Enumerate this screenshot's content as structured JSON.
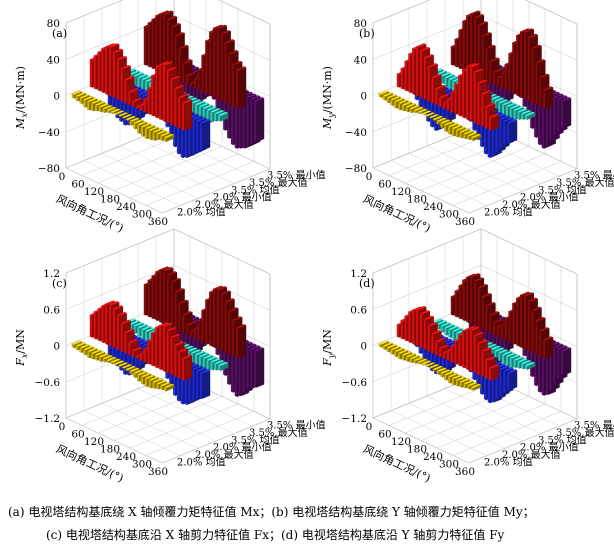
{
  "chart_data": [
    {
      "type": "bar",
      "panel_label": "(a)",
      "ylabel_var": "M",
      "ylabel_sub": "x",
      "ylabel_unit": "/(MN·m)",
      "ylim": [
        -80,
        80
      ],
      "yticks": [
        "80",
        "40",
        "0",
        "−40",
        "−80"
      ],
      "xlabel": "风向角工况/(°)",
      "xticks": [
        "0",
        "60",
        "120",
        "180",
        "240",
        "300",
        "360"
      ],
      "zticks": [
        "3.5% 最小值",
        "3.5% 最大值",
        "3.5% 均值",
        "2.0% 最小值",
        "2.0% 最大值",
        "2.0% 均值"
      ],
      "series": [
        {
          "label": "3.5% 最小值",
          "color": "#5a0f66",
          "values": [
            -45,
            -48,
            -50,
            -52,
            -55,
            -52,
            -48,
            -44,
            -35,
            -30,
            -25,
            -20,
            -18,
            -20,
            -28,
            -38,
            -48,
            -55,
            -60,
            -62,
            -60,
            -58,
            -54,
            -50,
            -45
          ]
        },
        {
          "label": "3.5% 最大值",
          "color": "#8b0a0a",
          "values": [
            42,
            48,
            54,
            60,
            64,
            66,
            62,
            56,
            48,
            36,
            22,
            10,
            4,
            10,
            22,
            40,
            58,
            70,
            76,
            78,
            74,
            66,
            56,
            46,
            42
          ]
        },
        {
          "label": "3.5% 均值",
          "color": "#2fd0c0",
          "values": [
            -6,
            -8,
            -10,
            -12,
            -14,
            -12,
            -10,
            -8,
            -6,
            -4,
            -2,
            0,
            0,
            0,
            -2,
            -6,
            -10,
            -14,
            -16,
            -18,
            -16,
            -14,
            -10,
            -8,
            -6
          ]
        },
        {
          "label": "2.0% 最小值",
          "color": "#1f2bd8",
          "values": [
            -30,
            -34,
            -38,
            -40,
            -42,
            -40,
            -36,
            -30,
            -24,
            -18,
            -12,
            -8,
            -6,
            -8,
            -14,
            -22,
            -32,
            -40,
            -46,
            -48,
            -46,
            -42,
            -38,
            -34,
            -30
          ]
        },
        {
          "label": "2.0% 最大值",
          "color": "#e01010",
          "values": [
            30,
            36,
            42,
            48,
            52,
            54,
            50,
            44,
            36,
            26,
            14,
            6,
            2,
            6,
            14,
            28,
            44,
            56,
            60,
            62,
            58,
            50,
            42,
            34,
            30
          ]
        },
        {
          "label": "2.0% 均值",
          "color": "#d6b800",
          "values": [
            -4,
            -5,
            -6,
            -8,
            -9,
            -8,
            -6,
            -5,
            -4,
            -2,
            -1,
            0,
            0,
            0,
            -1,
            -4,
            -6,
            -9,
            -10,
            -11,
            -10,
            -9,
            -6,
            -5,
            -4
          ]
        }
      ]
    },
    {
      "type": "bar",
      "panel_label": "(b)",
      "ylabel_var": "M",
      "ylabel_sub": "y",
      "ylabel_unit": "/(MN·m)",
      "ylim": [
        -80,
        80
      ],
      "yticks": [
        "80",
        "40",
        "0",
        "−40",
        "−80"
      ],
      "xlabel": "风向角工况/(°)",
      "xticks": [
        "0",
        "60",
        "120",
        "180",
        "240",
        "300",
        "360"
      ],
      "zticks": [
        "3.5% 最小值",
        "3.5% 最大值",
        "3.5% 均值",
        "2.0% 最小值",
        "2.0% 最大值",
        "2.0% 均值"
      ],
      "series": [
        {
          "label": "3.5% 最小值",
          "color": "#5a0f66",
          "values": [
            -30,
            -38,
            -46,
            -52,
            -56,
            -58,
            -54,
            -48,
            -40,
            -30,
            -22,
            -16,
            -14,
            -18,
            -26,
            -36,
            -46,
            -54,
            -60,
            -62,
            -58,
            -50,
            -42,
            -36,
            -30
          ]
        },
        {
          "label": "3.5% 最大值",
          "color": "#8b0a0a",
          "values": [
            20,
            30,
            42,
            54,
            62,
            66,
            64,
            58,
            48,
            36,
            24,
            14,
            10,
            16,
            28,
            42,
            56,
            66,
            72,
            74,
            70,
            60,
            46,
            32,
            20
          ]
        },
        {
          "label": "3.5% 均值",
          "color": "#2fd0c0",
          "values": [
            -4,
            -6,
            -8,
            -10,
            -12,
            -12,
            -10,
            -8,
            -6,
            -4,
            -2,
            0,
            0,
            0,
            -2,
            -4,
            -8,
            -12,
            -14,
            -14,
            -12,
            -10,
            -8,
            -6,
            -4
          ]
        },
        {
          "label": "2.0% 最小值",
          "color": "#1f2bd8",
          "values": [
            -22,
            -28,
            -34,
            -40,
            -44,
            -46,
            -42,
            -36,
            -30,
            -22,
            -16,
            -10,
            -8,
            -12,
            -18,
            -26,
            -34,
            -40,
            -46,
            -48,
            -44,
            -38,
            -32,
            -26,
            -22
          ]
        },
        {
          "label": "2.0% 最大值",
          "color": "#e01010",
          "values": [
            14,
            22,
            32,
            42,
            50,
            54,
            52,
            46,
            38,
            28,
            18,
            10,
            6,
            12,
            22,
            32,
            44,
            52,
            58,
            60,
            56,
            46,
            36,
            24,
            14
          ]
        },
        {
          "label": "2.0% 均值",
          "color": "#d6b800",
          "values": [
            -3,
            -4,
            -5,
            -6,
            -7,
            -7,
            -6,
            -5,
            -4,
            -2,
            -1,
            0,
            0,
            0,
            -1,
            -3,
            -5,
            -7,
            -8,
            -8,
            -7,
            -6,
            -5,
            -4,
            -3
          ]
        }
      ]
    },
    {
      "type": "bar",
      "panel_label": "(c)",
      "ylabel_var": "F",
      "ylabel_sub": "x",
      "ylabel_unit": "/MN",
      "ylim": [
        -1.2,
        1.2
      ],
      "yticks": [
        "1.2",
        "0.6",
        "0",
        "−0.6",
        "−1.2"
      ],
      "xlabel": "风向角工况/(°)",
      "xticks": [
        "0",
        "60",
        "120",
        "180",
        "240",
        "300",
        "360"
      ],
      "zticks": [
        "3.5% 最小值",
        "3.5% 最大值",
        "3.5% 均值",
        "2.0% 最小值",
        "2.0% 最大值",
        "2.0% 均值"
      ],
      "series": [
        {
          "label": "3.5% 最小值",
          "color": "#5a0f66",
          "values": [
            -0.6,
            -0.66,
            -0.72,
            -0.78,
            -0.82,
            -0.8,
            -0.72,
            -0.62,
            -0.5,
            -0.4,
            -0.3,
            -0.24,
            -0.2,
            -0.26,
            -0.36,
            -0.5,
            -0.64,
            -0.76,
            -0.86,
            -0.9,
            -0.86,
            -0.78,
            -0.7,
            -0.64,
            -0.6
          ]
        },
        {
          "label": "3.5% 最大值",
          "color": "#8b0a0a",
          "values": [
            0.5,
            0.6,
            0.7,
            0.8,
            0.86,
            0.88,
            0.84,
            0.76,
            0.62,
            0.46,
            0.3,
            0.16,
            0.08,
            0.16,
            0.32,
            0.52,
            0.72,
            0.88,
            0.96,
            0.98,
            0.94,
            0.84,
            0.72,
            0.6,
            0.5
          ]
        },
        {
          "label": "3.5% 均值",
          "color": "#2fd0c0",
          "values": [
            -0.08,
            -0.1,
            -0.12,
            -0.14,
            -0.16,
            -0.15,
            -0.13,
            -0.11,
            -0.08,
            -0.05,
            -0.03,
            -0.01,
            0,
            -0.01,
            -0.03,
            -0.07,
            -0.12,
            -0.16,
            -0.19,
            -0.2,
            -0.19,
            -0.16,
            -0.13,
            -0.1,
            -0.08
          ]
        },
        {
          "label": "2.0% 最小值",
          "color": "#1f2bd8",
          "values": [
            -0.42,
            -0.48,
            -0.54,
            -0.58,
            -0.62,
            -0.6,
            -0.54,
            -0.46,
            -0.36,
            -0.28,
            -0.2,
            -0.14,
            -0.12,
            -0.16,
            -0.24,
            -0.36,
            -0.48,
            -0.58,
            -0.64,
            -0.66,
            -0.64,
            -0.58,
            -0.52,
            -0.46,
            -0.42
          ]
        },
        {
          "label": "2.0% 最大值",
          "color": "#e01010",
          "values": [
            0.36,
            0.44,
            0.52,
            0.6,
            0.66,
            0.68,
            0.64,
            0.56,
            0.46,
            0.34,
            0.2,
            0.1,
            0.04,
            0.1,
            0.22,
            0.38,
            0.54,
            0.66,
            0.72,
            0.74,
            0.7,
            0.62,
            0.52,
            0.44,
            0.36
          ]
        },
        {
          "label": "2.0% 均值",
          "color": "#d6b800",
          "values": [
            -0.05,
            -0.06,
            -0.07,
            -0.08,
            -0.1,
            -0.09,
            -0.08,
            -0.07,
            -0.05,
            -0.03,
            -0.02,
            -0.01,
            0,
            -0.01,
            -0.02,
            -0.04,
            -0.07,
            -0.1,
            -0.12,
            -0.13,
            -0.12,
            -0.1,
            -0.08,
            -0.06,
            -0.05
          ]
        }
      ]
    },
    {
      "type": "bar",
      "panel_label": "(d)",
      "ylabel_var": "F",
      "ylabel_sub": "y",
      "ylabel_unit": "/MN",
      "ylim": [
        -1.2,
        1.2
      ],
      "yticks": [
        "1.2",
        "0.6",
        "0",
        "−0.6",
        "−1.2"
      ],
      "xlabel": "风向角工况/(°)",
      "xticks": [
        "0",
        "60",
        "120",
        "180",
        "240",
        "300",
        "360"
      ],
      "zticks": [
        "3.5% 最小值",
        "3.5% 最大值",
        "3.5% 均值",
        "2.0% 最小值",
        "2.0% 最大值",
        "2.0% 均值"
      ],
      "series": [
        {
          "label": "3.5% 最小值",
          "color": "#5a0f66",
          "values": [
            -0.4,
            -0.5,
            -0.6,
            -0.7,
            -0.76,
            -0.8,
            -0.76,
            -0.68,
            -0.56,
            -0.44,
            -0.32,
            -0.24,
            -0.2,
            -0.26,
            -0.38,
            -0.52,
            -0.66,
            -0.78,
            -0.86,
            -0.88,
            -0.84,
            -0.74,
            -0.62,
            -0.5,
            -0.4
          ]
        },
        {
          "label": "3.5% 最大值",
          "color": "#8b0a0a",
          "values": [
            0.3,
            0.42,
            0.54,
            0.66,
            0.74,
            0.78,
            0.74,
            0.66,
            0.54,
            0.42,
            0.3,
            0.2,
            0.16,
            0.22,
            0.36,
            0.5,
            0.66,
            0.78,
            0.86,
            0.88,
            0.82,
            0.7,
            0.56,
            0.42,
            0.3
          ]
        },
        {
          "label": "3.5% 均值",
          "color": "#2fd0c0",
          "values": [
            -0.06,
            -0.08,
            -0.1,
            -0.12,
            -0.13,
            -0.14,
            -0.13,
            -0.11,
            -0.09,
            -0.06,
            -0.04,
            -0.02,
            0,
            -0.02,
            -0.04,
            -0.07,
            -0.1,
            -0.13,
            -0.15,
            -0.16,
            -0.15,
            -0.12,
            -0.1,
            -0.08,
            -0.06
          ]
        },
        {
          "label": "2.0% 最小值",
          "color": "#1f2bd8",
          "values": [
            -0.28,
            -0.36,
            -0.44,
            -0.52,
            -0.56,
            -0.58,
            -0.56,
            -0.5,
            -0.42,
            -0.32,
            -0.24,
            -0.16,
            -0.14,
            -0.18,
            -0.28,
            -0.38,
            -0.48,
            -0.56,
            -0.62,
            -0.64,
            -0.6,
            -0.52,
            -0.44,
            -0.36,
            -0.28
          ]
        },
        {
          "label": "2.0% 最大值",
          "color": "#e01010",
          "values": [
            0.2,
            0.3,
            0.4,
            0.5,
            0.56,
            0.6,
            0.56,
            0.5,
            0.42,
            0.32,
            0.22,
            0.14,
            0.1,
            0.16,
            0.26,
            0.38,
            0.5,
            0.6,
            0.66,
            0.68,
            0.62,
            0.52,
            0.42,
            0.3,
            0.2
          ]
        },
        {
          "label": "2.0% 均值",
          "color": "#d6b800",
          "values": [
            -0.04,
            -0.05,
            -0.06,
            -0.07,
            -0.08,
            -0.09,
            -0.08,
            -0.07,
            -0.06,
            -0.04,
            -0.02,
            -0.01,
            0,
            -0.01,
            -0.02,
            -0.04,
            -0.06,
            -0.08,
            -0.1,
            -0.1,
            -0.09,
            -0.08,
            -0.06,
            -0.05,
            -0.04
          ]
        }
      ]
    }
  ],
  "captions": {
    "line1": "(a) 电视塔结构基底绕 X 轴倾覆力矩特征值 Mx；(b) 电视塔结构基底绕 Y 轴倾覆力矩特征值 My；",
    "line2": "(c) 电视塔结构基底沿 X 轴剪力特征值 Fx；(d) 电视塔结构基底沿 Y 轴剪力特征值 Fy"
  }
}
